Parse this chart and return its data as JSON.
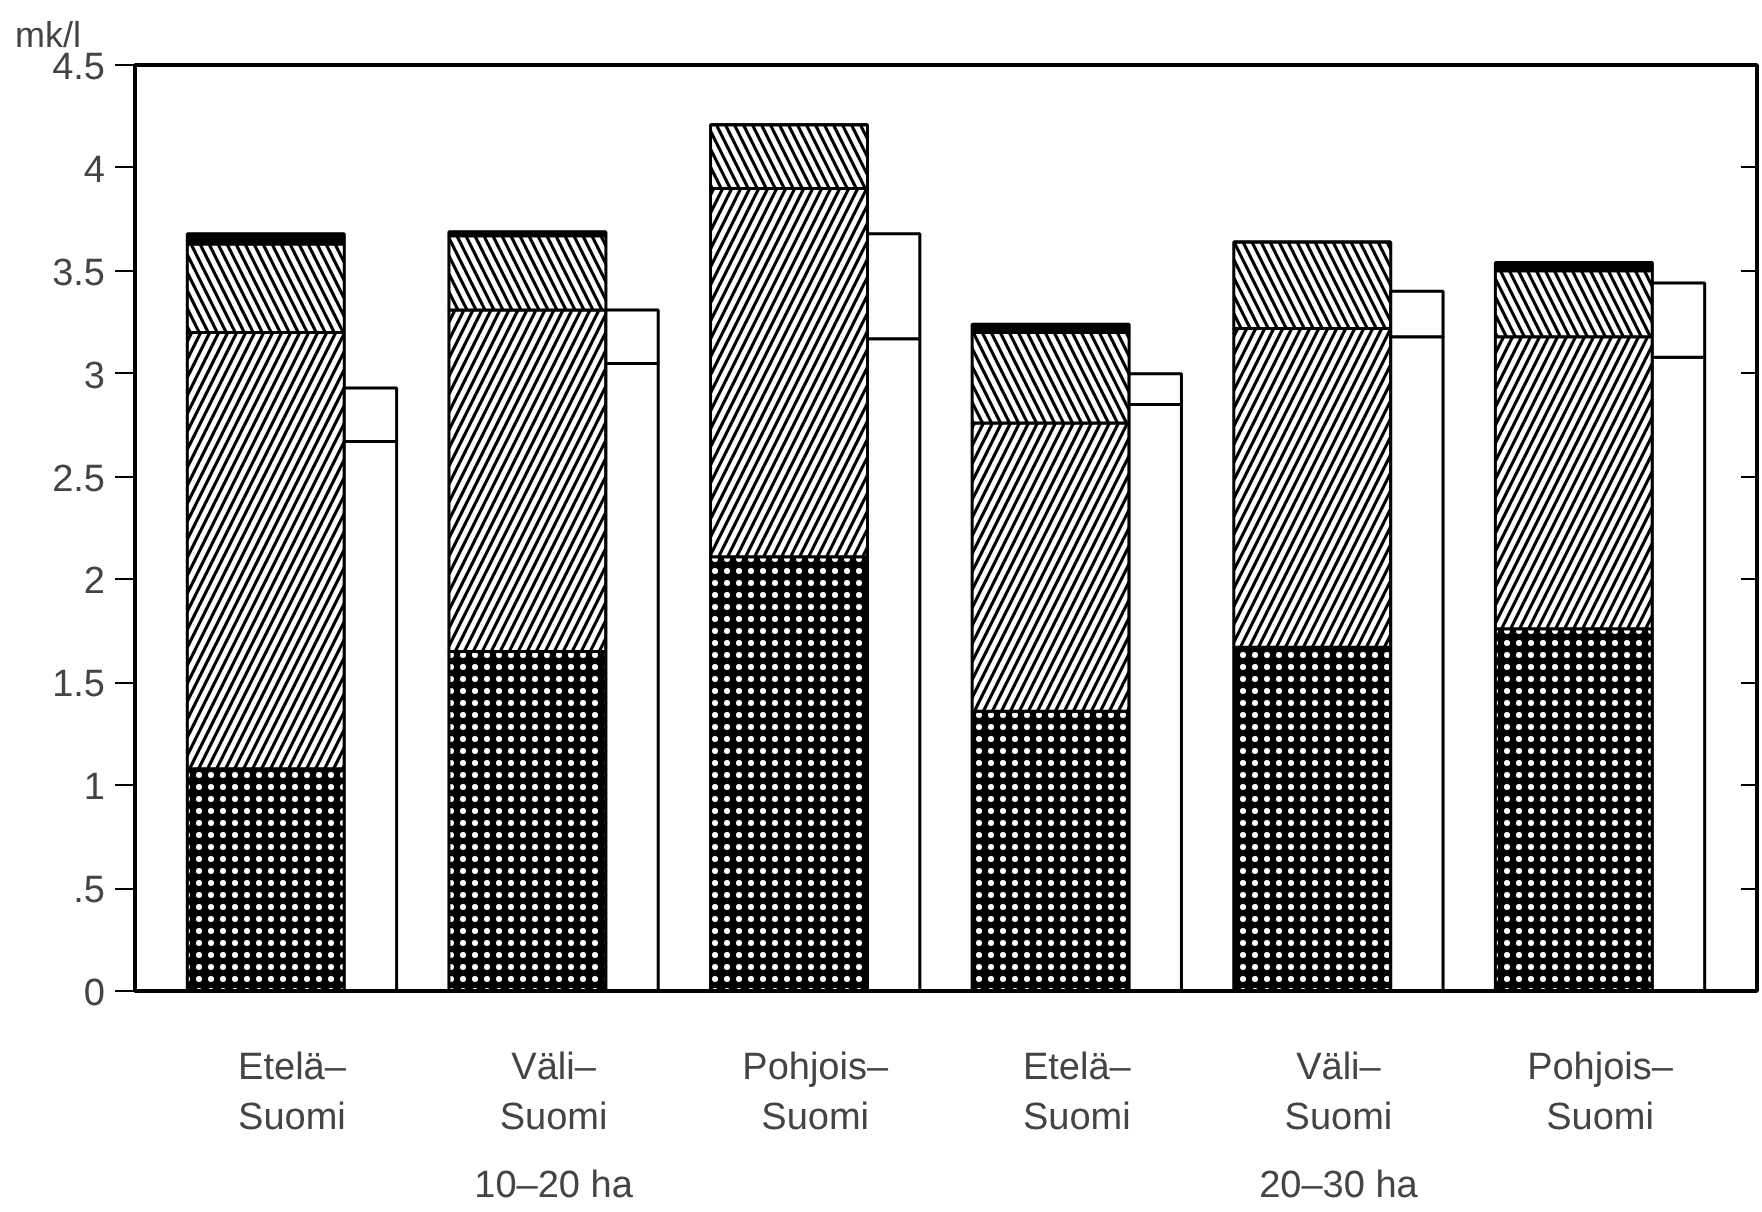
{
  "chart_data": {
    "type": "bar",
    "stacked": true,
    "ylabel": "mk/l",
    "categories": [
      "Etelä–\nSuomi",
      null,
      "Väli–\nSuomi",
      null,
      "Pohjois–\nSuomi",
      null,
      "Etelä–\nSuomi",
      null,
      "Väli–\nSuomi",
      null,
      "Pohjois–\nSuomi",
      null
    ],
    "series": [
      {
        "color": "#000000",
        "values": [
          1.08,
          null,
          1.65,
          null,
          2.11,
          null,
          1.36,
          null,
          1.67,
          null,
          1.76,
          null
        ]
      },
      {
        "color": "#ffffff",
        "values": [
          2.12,
          null,
          1.66,
          null,
          1.79,
          null,
          1.4,
          null,
          1.55,
          null,
          1.42,
          null
        ]
      },
      {
        "color": "#ffffff",
        "values": [
          0.43,
          null,
          0.36,
          null,
          0.31,
          null,
          0.44,
          null,
          0.42,
          null,
          0.32,
          null
        ]
      },
      {
        "color": "#000000",
        "values": [
          0.05,
          null,
          0.02,
          null,
          0,
          null,
          0.04,
          null,
          0,
          null,
          0.04,
          null
        ]
      },
      {
        "color": "#ffffff",
        "values": [
          null,
          2.67,
          null,
          3.05,
          null,
          3.17,
          null,
          2.85,
          null,
          3.18,
          null,
          3.08
        ]
      },
      {
        "color": "#ffffff",
        "values": [
          null,
          0.26,
          null,
          0.26,
          null,
          0.51,
          null,
          0.15,
          null,
          0.22,
          null,
          0.36
        ]
      }
    ],
    "ylim": [
      0,
      4.5
    ],
    "yticks": [
      {
        "value": 0,
        "label": "0"
      },
      {
        "value": 0.5,
        "label": ".5"
      },
      1,
      1.5,
      2,
      2.5,
      3,
      3.5,
      4,
      4.5
    ],
    "annotations": [
      "10–20 ha",
      "20–30 ha"
    ],
    "grid": false
  }
}
